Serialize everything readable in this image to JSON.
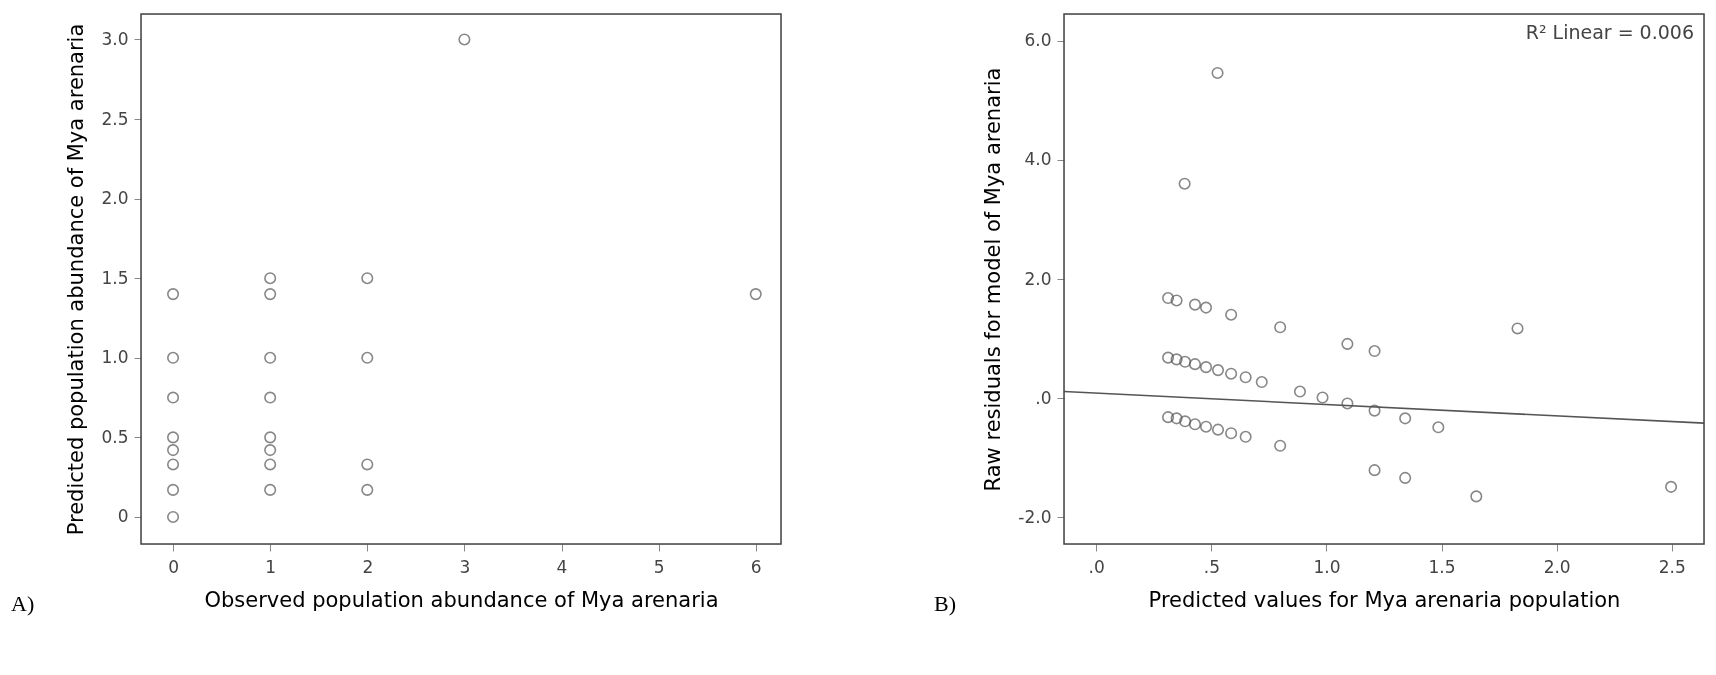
{
  "chart_data": [
    {
      "type": "scatter",
      "xlabel": "Observed population abundance of Mya arenaria",
      "ylabel": "Predicted population abundance of Mya arenaria",
      "annotations": [
        "A)"
      ],
      "series": [
        {
          "color": "#555555",
          "x": [
            0,
            0,
            0,
            0,
            0,
            0,
            0,
            0,
            1,
            1,
            1,
            1,
            1,
            1,
            1,
            1,
            2,
            2,
            2,
            2,
            3,
            6
          ],
          "values": [
            1.4,
            1.0,
            0.75,
            0.5,
            0.42,
            0.33,
            0.17,
            0,
            1.5,
            1.4,
            1.0,
            0.75,
            0.5,
            0.42,
            0.33,
            0.17,
            1.5,
            1.0,
            0.33,
            0.17,
            3.0,
            1.4
          ]
        }
      ],
      "xlim": [
        -0.33,
        6.26
      ],
      "ylim": [
        -0.17,
        3.16
      ],
      "xticks": [
        0,
        1,
        2,
        3,
        4,
        5,
        6
      ],
      "yticks": [
        0,
        {
          "value": 0.5,
          "label": "0.5"
        },
        {
          "value": 1,
          "label": "1.0"
        },
        {
          "value": 1.5,
          "label": "1.5"
        },
        {
          "value": 2,
          "label": "2.0"
        },
        {
          "value": 2.5,
          "label": "2.5"
        },
        {
          "value": 3,
          "label": "3.0"
        }
      ],
      "marker": "circle",
      "grid": false
    },
    {
      "type": "scatter",
      "xlabel": "Predicted values for Mya arenaria population",
      "ylabel": "Raw residuals for model of Mya arenaria",
      "annotations": [
        "B)",
        "R² Linear = 0.006"
      ],
      "series": [
        {
          "color": "#555555",
          "x": [
            0.527,
            0.384,
            0.312,
            0.349,
            0.429,
            0.477,
            0.586,
            0.799,
            1.091,
            1.209,
            1.83,
            0.312,
            0.349,
            0.386,
            0.429,
            0.477,
            0.529,
            0.586,
            0.649,
            0.719,
            0.885,
            0.983,
            1.091,
            1.209,
            1.342,
            1.486,
            0.312,
            0.349,
            0.386,
            0.429,
            0.477,
            0.529,
            0.586,
            0.649,
            0.799,
            1.209,
            1.342,
            1.651,
            2.497
          ],
          "values": [
            5.46,
            3.6,
            1.68,
            1.64,
            1.57,
            1.52,
            1.4,
            1.19,
            0.91,
            0.79,
            1.17,
            0.68,
            0.65,
            0.61,
            0.57,
            0.52,
            0.47,
            0.41,
            0.35,
            0.27,
            0.11,
            0.01,
            -0.09,
            -0.21,
            -0.34,
            -0.49,
            -0.32,
            -0.34,
            -0.39,
            -0.44,
            -0.48,
            -0.53,
            -0.59,
            -0.65,
            -0.8,
            -1.21,
            -1.34,
            -1.65,
            -1.49
          ]
        },
        {
          "type": "line",
          "color": "#555555",
          "x": [
            -0.14,
            2.64
          ],
          "values": [
            0.11,
            -0.42
          ],
          "line_style": "solid",
          "marker": "none"
        }
      ],
      "xlim": [
        -0.14,
        2.64
      ],
      "ylim": [
        -2.45,
        6.45
      ],
      "xticks": [
        {
          "value": 0,
          "label": ".0"
        },
        {
          "value": 0.5,
          "label": ".5"
        },
        {
          "value": 1,
          "label": "1.0"
        },
        {
          "value": 1.5,
          "label": "1.5"
        },
        {
          "value": 2,
          "label": "2.0"
        },
        {
          "value": 2.5,
          "label": "2.5"
        }
      ],
      "yticks": [
        {
          "value": -2,
          "label": "-2.0"
        },
        {
          "value": 0,
          "label": ".0"
        },
        {
          "value": 2,
          "label": "2.0"
        },
        {
          "value": 4,
          "label": "4.0"
        },
        {
          "value": 6,
          "label": "6.0"
        }
      ],
      "marker": "circle",
      "grid": false
    }
  ]
}
